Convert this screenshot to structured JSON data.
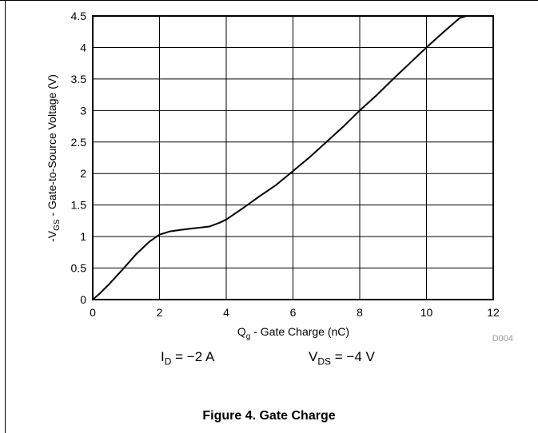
{
  "chart_data": {
    "type": "line",
    "xlabel": {
      "main": "Q",
      "sub": "g",
      "rest": " - Gate Charge (nC)"
    },
    "ylabel": {
      "pre": "-V",
      "sub": "GS",
      "rest": " - Gate-to-Source Voltage (V)"
    },
    "xlim": [
      0,
      12
    ],
    "ylim": [
      0,
      4.5
    ],
    "xticks": [
      "0",
      "2",
      "4",
      "6",
      "8",
      "10",
      "12"
    ],
    "yticks": [
      "0",
      "0.5",
      "1",
      "1.5",
      "2",
      "2.5",
      "3",
      "3.5",
      "4",
      "4.5"
    ],
    "grid": true,
    "series": [
      {
        "x": [
          0,
          0.2,
          0.5,
          0.9,
          1.3,
          1.7,
          2.0,
          2.3,
          2.7,
          3.0,
          3.5,
          3.8,
          4.0,
          4.5,
          5.0,
          5.5,
          6.0,
          6.5,
          7.0,
          7.5,
          8.0,
          8.5,
          9.0,
          9.5,
          10.0,
          10.5,
          11.0,
          11.2
        ],
        "y": [
          0,
          0.09,
          0.25,
          0.48,
          0.72,
          0.92,
          1.03,
          1.08,
          1.11,
          1.13,
          1.16,
          1.22,
          1.27,
          1.45,
          1.64,
          1.82,
          2.04,
          2.26,
          2.5,
          2.74,
          3.0,
          3.24,
          3.5,
          3.75,
          4.0,
          4.24,
          4.47,
          4.5
        ]
      }
    ],
    "code": "D004"
  },
  "conditions": {
    "id_label": "I",
    "id_sub": "D",
    "id_value": " = −2 A",
    "vds_label": "V",
    "vds_sub": "DS",
    "vds_value": " = −4 V"
  },
  "caption": "Figure 4. Gate Charge"
}
